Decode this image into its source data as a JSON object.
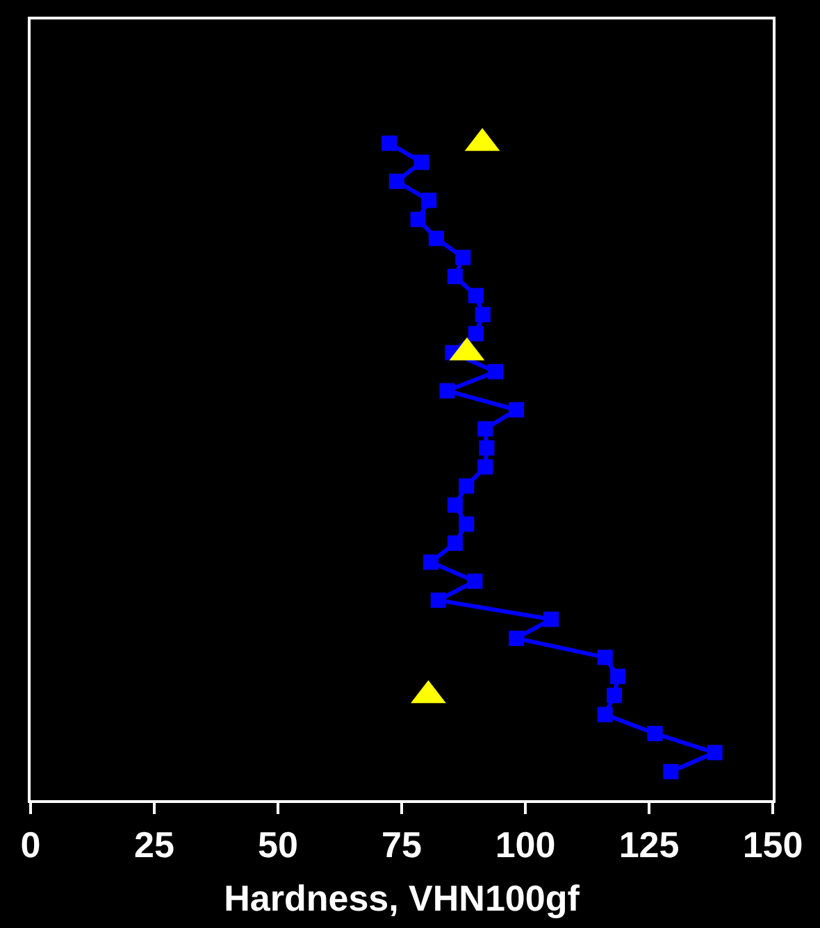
{
  "chart_data": {
    "type": "line",
    "orientation": "horizontal",
    "xlabel": "Hardness, VHN100gf",
    "categories": [
      null,
      null,
      null,
      null,
      null,
      null,
      null,
      null,
      null,
      null,
      null,
      null,
      null,
      null,
      null,
      null,
      null,
      null,
      null,
      null,
      null,
      null,
      null,
      null,
      null,
      null,
      null,
      null,
      null,
      null,
      null,
      null,
      null,
      null
    ],
    "series": [
      {
        "type": "line",
        "marker": "square",
        "color": "#0000ff",
        "values": [
          72.5,
          79,
          74,
          80.5,
          78.3,
          82,
          87.4,
          85.8,
          90,
          91.4,
          90,
          85.3,
          94,
          84.2,
          98.2,
          91.9,
          92.2,
          91.9,
          88.1,
          85.8,
          88.1,
          85.8,
          80.9,
          89.8,
          82.4,
          105.2,
          98.2,
          116.1,
          118.7,
          118,
          116.1,
          126.2,
          138.3,
          129.4
        ]
      },
      {
        "type": "scatter",
        "marker": "triangle",
        "color": "#ffff00",
        "values": [
          91.3,
          null,
          null,
          null,
          null,
          null,
          null,
          null,
          null,
          null,
          null,
          88.2,
          null,
          null,
          null,
          null,
          null,
          null,
          null,
          null,
          null,
          null,
          null,
          null,
          null,
          null,
          null,
          null,
          null,
          80.4,
          null,
          null,
          null,
          null
        ]
      }
    ],
    "xlim": [
      0,
      150
    ],
    "xticks": [
      0,
      25,
      50,
      75,
      100,
      125,
      150
    ],
    "tick_labels": "x"
  }
}
